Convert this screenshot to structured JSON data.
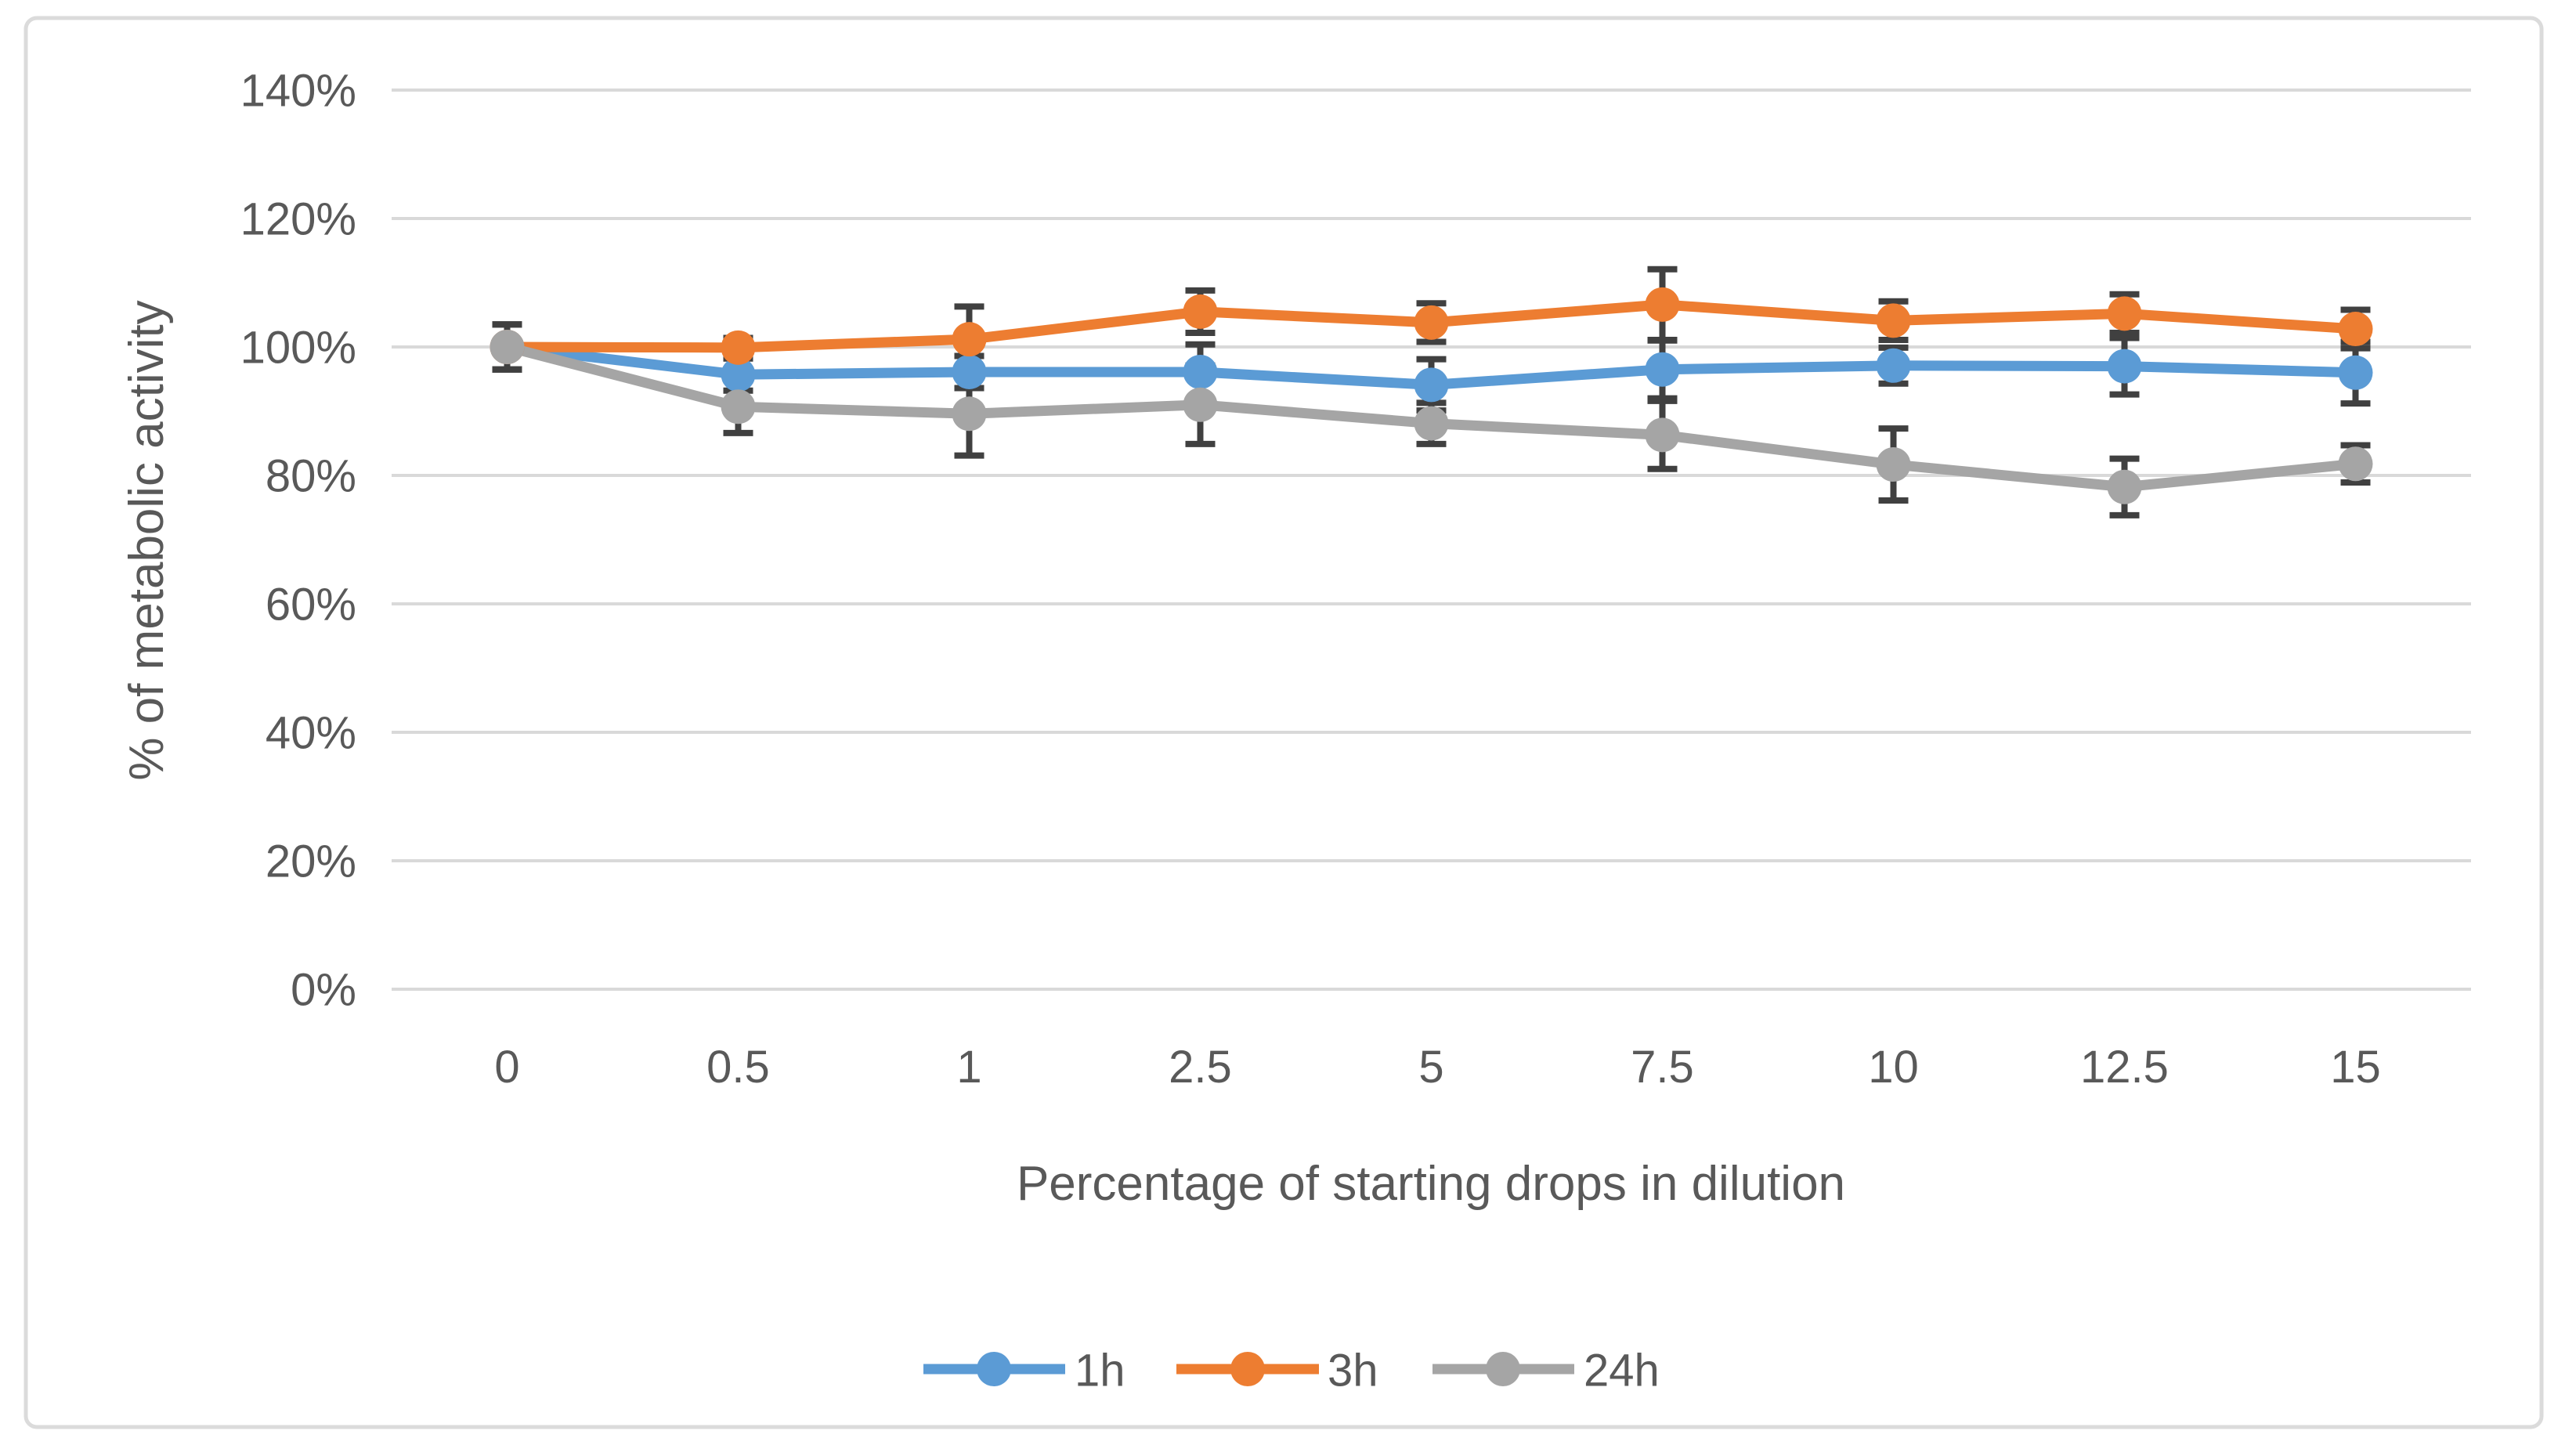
{
  "figure": {
    "kind": "excel-style line chart with error bars",
    "background": "#FFFFFF",
    "border_color": "#DBDBDB"
  },
  "chart_data": {
    "type": "line",
    "title": "",
    "xlabel": "Percentage of starting drops in dilution",
    "ylabel": "% of metabolic activity",
    "categories": [
      "0",
      "0.5",
      "1",
      "2.5",
      "5",
      "7.5",
      "10",
      "12.5",
      "15"
    ],
    "y_axis": {
      "min": 0,
      "max": 140,
      "step": 20,
      "unit": "%",
      "tick_labels": [
        "0%",
        "20%",
        "40%",
        "60%",
        "80%",
        "100%",
        "120%",
        "140%"
      ]
    },
    "grid": true,
    "legend_position": "bottom-center",
    "series": [
      {
        "name": "1h",
        "color": "#5B9BD5",
        "values": [
          100,
          95.7,
          96.1,
          96.1,
          94.1,
          96.5,
          97.1,
          97.0,
          96.0
        ],
        "error": [
          3.5,
          2.5,
          2.5,
          4.3,
          4.0,
          4.5,
          2.8,
          4.4,
          4.8
        ]
      },
      {
        "name": "3h",
        "color": "#ED7D31",
        "values": [
          100,
          99.9,
          101.2,
          105.5,
          103.8,
          106.6,
          104.1,
          105.2,
          102.8
        ],
        "error": [
          3.5,
          1.5,
          5.1,
          3.3,
          3.0,
          5.5,
          3.0,
          3.0,
          3.0
        ]
      },
      {
        "name": "24h",
        "color": "#A5A5A5",
        "values": [
          100,
          90.7,
          89.6,
          91.0,
          88.1,
          86.3,
          81.7,
          78.2,
          81.8
        ],
        "error": [
          3.5,
          4.1,
          6.5,
          6.1,
          3.2,
          5.3,
          5.6,
          4.4,
          2.9
        ]
      }
    ],
    "style": {
      "gridline_color": "#D9D9D9",
      "error_bar_color": "#404040",
      "text_color": "#595959",
      "marker": "circle"
    }
  }
}
